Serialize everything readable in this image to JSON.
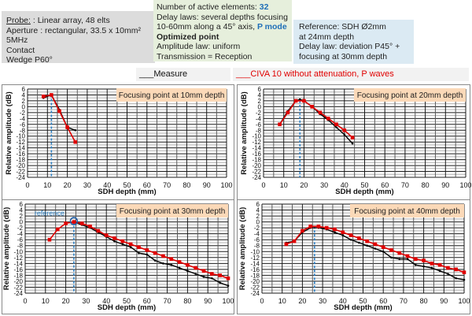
{
  "header": {
    "probe_box": {
      "probe_label": "Probe:",
      "probe_value": ": Linear array, 48 elts",
      "aperture": "Aperture : rectangular, 33.5 x 10mm²",
      "frequency": "5MHz",
      "contact": "Contact",
      "wedge": "Wedge P60°"
    },
    "delay_box": {
      "active_elements_label": "Number of active elements: ",
      "active_elements_value": "32",
      "delay_laws_line1": "Delay laws: several depths focusing",
      "delay_laws_line2": "10-60mm along a 45° axis, ",
      "mode": "P mode",
      "optimized": "Optimized point",
      "amplitude_law": "Amplitude law: uniform",
      "transmission": "Transmission = Reception"
    },
    "reference_box": {
      "line1": "Reference: SDH Ø2mm",
      "line2": "at 24mm  depth",
      "line3": "Delay law: deviation P45° +",
      "line4": "focusing at 30mm depth"
    }
  },
  "legend": {
    "measure": "___Measure",
    "civa": "___CIVA 10 without attenuation, P waves",
    "colors": {
      "measure": "#000000",
      "civa": "#e00000",
      "focus_line": "#2a7fc4",
      "title_box": "#fbd9b8"
    }
  },
  "chart_data": [
    {
      "type": "line",
      "title": "Focusing point at  10mm depth",
      "xlabel": "SDH depth (mm)",
      "ylabel": "Relative amplitude (dB)",
      "xlim": [
        0,
        100
      ],
      "ylim": [
        -24,
        6
      ],
      "xticks": [
        0,
        10,
        20,
        30,
        40,
        50,
        60,
        70,
        80,
        90,
        100
      ],
      "yticks": [
        6,
        4,
        2,
        0,
        -2,
        -4,
        -6,
        -8,
        -10,
        -12,
        -14,
        -16,
        -18,
        -20,
        -22,
        -24
      ],
      "grid": true,
      "focus_depth": 12,
      "series": [
        {
          "name": "Measure",
          "x": [
            8,
            12,
            16,
            20,
            24
          ],
          "y": [
            3.0,
            4.0,
            -1.0,
            -7.0,
            -8.0
          ]
        },
        {
          "name": "CIVA 10 without attenuation, P waves",
          "x": [
            8,
            12,
            16,
            20,
            24
          ],
          "y": [
            3.5,
            4.0,
            -1.5,
            -7.0,
            -12.0
          ]
        }
      ]
    },
    {
      "type": "line",
      "title": "Focusing point at  20mm depth",
      "xlabel": "SDH depth (mm)",
      "ylabel": "Relative amplitude (dB)",
      "xlim": [
        0,
        100
      ],
      "ylim": [
        -24,
        6
      ],
      "xticks": [
        0,
        10,
        20,
        30,
        40,
        50,
        60,
        70,
        80,
        90,
        100
      ],
      "yticks": [
        6,
        4,
        2,
        0,
        -2,
        -4,
        -6,
        -8,
        -10,
        -12,
        -14,
        -16,
        -18,
        -20,
        -22,
        -24
      ],
      "grid": true,
      "focus_depth": 18,
      "series": [
        {
          "name": "Measure",
          "x": [
            8,
            12,
            16,
            18,
            20,
            24,
            28,
            32,
            36,
            40,
            44
          ],
          "y": [
            -6.0,
            -1.5,
            2.0,
            2.5,
            2.0,
            0.0,
            -2.5,
            -4.5,
            -7.0,
            -9.5,
            -12.5
          ]
        },
        {
          "name": "CIVA 10 without attenuation, P waves",
          "x": [
            8,
            12,
            16,
            20,
            24,
            28,
            32,
            36,
            40,
            44
          ],
          "y": [
            -6.0,
            -2.0,
            2.0,
            2.0,
            0.0,
            -2.0,
            -4.0,
            -6.0,
            -8.0,
            -10.5
          ]
        }
      ]
    },
    {
      "type": "line",
      "title": "Focusing point at  30mm depth",
      "xlabel": "SDH depth (mm)",
      "ylabel": "Relative amplitude (dB)",
      "xlim": [
        0,
        100
      ],
      "ylim": [
        -24,
        6
      ],
      "xticks": [
        0,
        10,
        20,
        30,
        40,
        50,
        60,
        70,
        80,
        90,
        100
      ],
      "yticks": [
        6,
        4,
        2,
        0,
        -2,
        -4,
        -6,
        -8,
        -10,
        -12,
        -14,
        -16,
        -18,
        -20,
        -22,
        -24
      ],
      "grid": true,
      "focus_depth": 24,
      "annotation": "reference",
      "series": [
        {
          "name": "Measure",
          "x": [
            24,
            28,
            32,
            36,
            40,
            44,
            48,
            52,
            56,
            60,
            64,
            68,
            72,
            76,
            80,
            84,
            88,
            92,
            96,
            100
          ],
          "y": [
            0.0,
            -1.0,
            -2.0,
            -3.5,
            -5.0,
            -6.5,
            -7.5,
            -8.5,
            -10.5,
            -11.0,
            -13.0,
            -14.0,
            -14.5,
            -15.5,
            -16.5,
            -17.5,
            -18.5,
            -19.0,
            -20.5,
            -21.5
          ]
        },
        {
          "name": "CIVA 10 without attenuation, P waves",
          "x": [
            12,
            16,
            20,
            24,
            28,
            32,
            36,
            40,
            44,
            48,
            52,
            56,
            60,
            64,
            68,
            72,
            76,
            80,
            84,
            88,
            92,
            96,
            100
          ],
          "y": [
            -6.0,
            -2.5,
            -0.5,
            0.0,
            -0.5,
            -1.5,
            -3.0,
            -4.5,
            -5.5,
            -6.5,
            -7.5,
            -8.5,
            -9.5,
            -10.5,
            -11.5,
            -12.5,
            -13.5,
            -14.5,
            -15.5,
            -16.5,
            -17.5,
            -18.0,
            -19.0
          ]
        }
      ]
    },
    {
      "type": "line",
      "title": "Focusing point at  40mm depth",
      "xlabel": "SDH depth (mm)",
      "ylabel": "Relative amplitude (dB)",
      "xlim": [
        0,
        100
      ],
      "ylim": [
        -24,
        6
      ],
      "xticks": [
        0,
        10,
        20,
        30,
        40,
        50,
        60,
        70,
        80,
        90,
        100
      ],
      "yticks": [
        6,
        4,
        2,
        0,
        -2,
        -4,
        -6,
        -8,
        -10,
        -12,
        -14,
        -16,
        -18,
        -20,
        -22,
        -24
      ],
      "grid": true,
      "focus_depth": 26,
      "series": [
        {
          "name": "Measure",
          "x": [
            12,
            16,
            20,
            24,
            28,
            32,
            36,
            40,
            44,
            48,
            52,
            56,
            60,
            64,
            68,
            72,
            76,
            80,
            84,
            88,
            92,
            96,
            100
          ],
          "y": [
            -7.0,
            -6.5,
            -3.5,
            -2.0,
            -2.0,
            -2.5,
            -3.5,
            -4.5,
            -6.0,
            -7.0,
            -8.0,
            -9.0,
            -10.0,
            -12.0,
            -12.5,
            -12.5,
            -14.5,
            -15.0,
            -15.5,
            -16.5,
            -17.5,
            -19.0,
            -19.5
          ]
        },
        {
          "name": "CIVA 10 without attenuation, P waves",
          "x": [
            12,
            16,
            20,
            24,
            28,
            32,
            36,
            40,
            44,
            48,
            52,
            56,
            60,
            64,
            68,
            72,
            76,
            80,
            84,
            88,
            92,
            96,
            100
          ],
          "y": [
            -7.5,
            -6.5,
            -3.0,
            -1.5,
            -1.5,
            -2.0,
            -2.5,
            -3.5,
            -4.5,
            -5.5,
            -6.5,
            -7.5,
            -8.5,
            -9.5,
            -10.5,
            -11.5,
            -12.5,
            -13.0,
            -14.0,
            -14.5,
            -15.5,
            -16.0,
            -17.0
          ]
        }
      ]
    }
  ]
}
